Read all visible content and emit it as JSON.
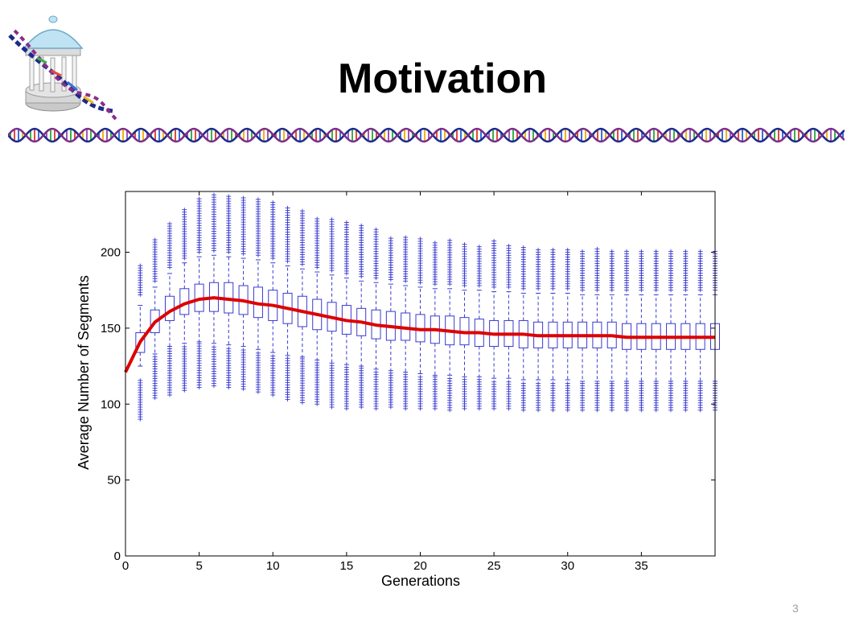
{
  "slide": {
    "title": "Motivation",
    "page_number": "3"
  },
  "icons": {
    "logo": "old-well-dna-logo-icon",
    "divider": "dna-helix-divider-icon"
  },
  "chart_data": {
    "type": "box",
    "title": "",
    "xlabel": "Generations",
    "ylabel": "Average Number of Segments",
    "xlim": [
      0,
      40
    ],
    "ylim": [
      0,
      240
    ],
    "xticks": [
      0,
      5,
      10,
      15,
      20,
      25,
      30,
      35
    ],
    "yticks": [
      0,
      50,
      100,
      150,
      200
    ],
    "grid": false,
    "colors": {
      "box": "#3a3ad0",
      "mean_line": "#dd0000"
    },
    "boxes": [
      {
        "x": 1,
        "q1": 134,
        "median": 138,
        "q3": 147,
        "w_low": 125,
        "w_high": 165,
        "out_low": [
          90,
          117
        ],
        "out_high": [
          172,
          192
        ]
      },
      {
        "x": 2,
        "q1": 147,
        "median": 153,
        "q3": 162,
        "w_low": 133,
        "w_high": 177,
        "out_low": [
          104,
          132
        ],
        "out_high": [
          181,
          209
        ]
      },
      {
        "x": 3,
        "q1": 155,
        "median": 161,
        "q3": 171,
        "w_low": 138,
        "w_high": 186,
        "out_low": [
          106,
          137
        ],
        "out_high": [
          190,
          219
        ]
      },
      {
        "x": 4,
        "q1": 159,
        "median": 166,
        "q3": 176,
        "w_low": 140,
        "w_high": 193,
        "out_low": [
          109,
          139
        ],
        "out_high": [
          196,
          229
        ]
      },
      {
        "x": 5,
        "q1": 161,
        "median": 169,
        "q3": 179,
        "w_low": 141,
        "w_high": 197,
        "out_low": [
          111,
          140
        ],
        "out_high": [
          200,
          236
        ]
      },
      {
        "x": 6,
        "q1": 161,
        "median": 170,
        "q3": 180,
        "w_low": 140,
        "w_high": 198,
        "out_low": [
          112,
          139
        ],
        "out_high": [
          201,
          238
        ]
      },
      {
        "x": 7,
        "q1": 160,
        "median": 169,
        "q3": 180,
        "w_low": 139,
        "w_high": 197,
        "out_low": [
          111,
          138
        ],
        "out_high": [
          200,
          238
        ]
      },
      {
        "x": 8,
        "q1": 159,
        "median": 168,
        "q3": 178,
        "w_low": 138,
        "w_high": 196,
        "out_low": [
          110,
          137
        ],
        "out_high": [
          199,
          237
        ]
      },
      {
        "x": 9,
        "q1": 157,
        "median": 166,
        "q3": 177,
        "w_low": 136,
        "w_high": 195,
        "out_low": [
          108,
          135
        ],
        "out_high": [
          198,
          236
        ]
      },
      {
        "x": 10,
        "q1": 155,
        "median": 164,
        "q3": 175,
        "w_low": 134,
        "w_high": 193,
        "out_low": [
          106,
          133
        ],
        "out_high": [
          196,
          233
        ]
      },
      {
        "x": 11,
        "q1": 153,
        "median": 162,
        "q3": 173,
        "w_low": 132,
        "w_high": 191,
        "out_low": [
          103,
          131
        ],
        "out_high": [
          194,
          230
        ]
      },
      {
        "x": 12,
        "q1": 151,
        "median": 160,
        "q3": 171,
        "w_low": 131,
        "w_high": 189,
        "out_low": [
          101,
          130
        ],
        "out_high": [
          192,
          228
        ]
      },
      {
        "x": 13,
        "q1": 149,
        "median": 158,
        "q3": 169,
        "w_low": 129,
        "w_high": 187,
        "out_low": [
          100,
          128
        ],
        "out_high": [
          190,
          223
        ]
      },
      {
        "x": 14,
        "q1": 148,
        "median": 156,
        "q3": 167,
        "w_low": 127,
        "w_high": 185,
        "out_low": [
          98,
          126
        ],
        "out_high": [
          188,
          222
        ]
      },
      {
        "x": 15,
        "q1": 146,
        "median": 155,
        "q3": 165,
        "w_low": 126,
        "w_high": 183,
        "out_low": [
          97,
          125
        ],
        "out_high": [
          186,
          220
        ]
      },
      {
        "x": 16,
        "q1": 145,
        "median": 153,
        "q3": 163,
        "w_low": 125,
        "w_high": 181,
        "out_low": [
          98,
          124
        ],
        "out_high": [
          184,
          218
        ]
      },
      {
        "x": 17,
        "q1": 143,
        "median": 152,
        "q3": 162,
        "w_low": 123,
        "w_high": 180,
        "out_low": [
          97,
          122
        ],
        "out_high": [
          183,
          216
        ]
      },
      {
        "x": 18,
        "q1": 142,
        "median": 151,
        "q3": 161,
        "w_low": 122,
        "w_high": 179,
        "out_low": [
          98,
          121
        ],
        "out_high": [
          182,
          210
        ]
      },
      {
        "x": 19,
        "q1": 142,
        "median": 150,
        "q3": 160,
        "w_low": 121,
        "w_high": 178,
        "out_low": [
          97,
          120
        ],
        "out_high": [
          181,
          211
        ]
      },
      {
        "x": 20,
        "q1": 141,
        "median": 149,
        "q3": 159,
        "w_low": 120,
        "w_high": 177,
        "out_low": [
          97,
          119
        ],
        "out_high": [
          180,
          210
        ]
      },
      {
        "x": 21,
        "q1": 140,
        "median": 149,
        "q3": 158,
        "w_low": 119,
        "w_high": 176,
        "out_low": [
          97,
          118
        ],
        "out_high": [
          179,
          207
        ]
      },
      {
        "x": 22,
        "q1": 139,
        "median": 148,
        "q3": 158,
        "w_low": 119,
        "w_high": 176,
        "out_low": [
          96,
          118
        ],
        "out_high": [
          179,
          209
        ]
      },
      {
        "x": 23,
        "q1": 139,
        "median": 147,
        "q3": 157,
        "w_low": 118,
        "w_high": 175,
        "out_low": [
          97,
          117
        ],
        "out_high": [
          178,
          206
        ]
      },
      {
        "x": 24,
        "q1": 138,
        "median": 147,
        "q3": 156,
        "w_low": 118,
        "w_high": 175,
        "out_low": [
          97,
          117
        ],
        "out_high": [
          178,
          205
        ]
      },
      {
        "x": 25,
        "q1": 138,
        "median": 146,
        "q3": 155,
        "w_low": 117,
        "w_high": 174,
        "out_low": [
          97,
          116
        ],
        "out_high": [
          177,
          208
        ]
      },
      {
        "x": 26,
        "q1": 138,
        "median": 146,
        "q3": 155,
        "w_low": 117,
        "w_high": 174,
        "out_low": [
          97,
          116
        ],
        "out_high": [
          177,
          205
        ]
      },
      {
        "x": 27,
        "q1": 137,
        "median": 146,
        "q3": 155,
        "w_low": 116,
        "w_high": 173,
        "out_low": [
          96,
          115
        ],
        "out_high": [
          176,
          204
        ]
      },
      {
        "x": 28,
        "q1": 137,
        "median": 145,
        "q3": 154,
        "w_low": 116,
        "w_high": 173,
        "out_low": [
          96,
          115
        ],
        "out_high": [
          176,
          203
        ]
      },
      {
        "x": 29,
        "q1": 137,
        "median": 145,
        "q3": 154,
        "w_low": 116,
        "w_high": 173,
        "out_low": [
          96,
          115
        ],
        "out_high": [
          176,
          203
        ]
      },
      {
        "x": 30,
        "q1": 137,
        "median": 145,
        "q3": 154,
        "w_low": 116,
        "w_high": 173,
        "out_low": [
          96,
          115
        ],
        "out_high": [
          176,
          202
        ]
      },
      {
        "x": 31,
        "q1": 137,
        "median": 145,
        "q3": 154,
        "w_low": 115,
        "w_high": 172,
        "out_low": [
          96,
          114
        ],
        "out_high": [
          175,
          202
        ]
      },
      {
        "x": 32,
        "q1": 137,
        "median": 145,
        "q3": 154,
        "w_low": 115,
        "w_high": 172,
        "out_low": [
          96,
          114
        ],
        "out_high": [
          175,
          203
        ]
      },
      {
        "x": 33,
        "q1": 137,
        "median": 145,
        "q3": 154,
        "w_low": 115,
        "w_high": 172,
        "out_low": [
          96,
          114
        ],
        "out_high": [
          175,
          202
        ]
      },
      {
        "x": 34,
        "q1": 136,
        "median": 144,
        "q3": 153,
        "w_low": 115,
        "w_high": 172,
        "out_low": [
          96,
          114
        ],
        "out_high": [
          175,
          201
        ]
      },
      {
        "x": 35,
        "q1": 136,
        "median": 144,
        "q3": 153,
        "w_low": 115,
        "w_high": 172,
        "out_low": [
          96,
          114
        ],
        "out_high": [
          175,
          201
        ]
      },
      {
        "x": 36,
        "q1": 136,
        "median": 144,
        "q3": 153,
        "w_low": 115,
        "w_high": 172,
        "out_low": [
          96,
          114
        ],
        "out_high": [
          175,
          201
        ]
      },
      {
        "x": 37,
        "q1": 136,
        "median": 144,
        "q3": 153,
        "w_low": 115,
        "w_high": 172,
        "out_low": [
          96,
          114
        ],
        "out_high": [
          175,
          201
        ]
      },
      {
        "x": 38,
        "q1": 136,
        "median": 144,
        "q3": 153,
        "w_low": 115,
        "w_high": 172,
        "out_low": [
          96,
          114
        ],
        "out_high": [
          175,
          201
        ]
      },
      {
        "x": 39,
        "q1": 136,
        "median": 144,
        "q3": 153,
        "w_low": 115,
        "w_high": 172,
        "out_low": [
          96,
          114
        ],
        "out_high": [
          175,
          201
        ]
      },
      {
        "x": 40,
        "q1": 136,
        "median": 144,
        "q3": 153,
        "w_low": 115,
        "w_high": 172,
        "out_low": [
          96,
          114
        ],
        "out_high": [
          175,
          201
        ]
      }
    ],
    "series": [
      {
        "type": "line",
        "x": [
          0,
          1,
          2,
          3,
          4,
          5,
          6,
          7,
          8,
          9,
          10,
          11,
          12,
          13,
          14,
          15,
          16,
          17,
          18,
          19,
          20,
          21,
          22,
          23,
          24,
          25,
          26,
          27,
          28,
          29,
          30,
          31,
          32,
          33,
          34,
          35,
          36,
          37,
          38,
          39,
          40
        ],
        "values": [
          121,
          141,
          154,
          161,
          166,
          169,
          170,
          169,
          168,
          166,
          165,
          163,
          161,
          159,
          157,
          155,
          154,
          152,
          151,
          150,
          149,
          149,
          148,
          147,
          147,
          146,
          146,
          146,
          145,
          145,
          145,
          145,
          145,
          145,
          144,
          144,
          144,
          144,
          144,
          144,
          144
        ]
      }
    ]
  }
}
